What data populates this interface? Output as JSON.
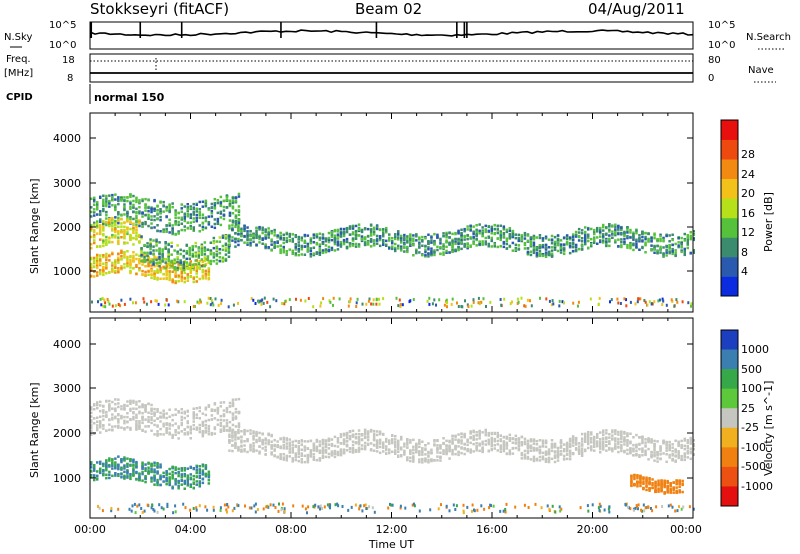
{
  "header": {
    "title": "Stokkseyri (fitACF)",
    "beam": "Beam 02",
    "date": "04/Aug/2011"
  },
  "top_panels": {
    "nsky_label": "N.Sky",
    "nsky_ticks": [
      "10^5",
      "10^0"
    ],
    "nsearch_label": "N.Search",
    "nsearch_ticks": [
      "10^5",
      "10^0"
    ],
    "freq_label_1": "Freq.",
    "freq_label_2": "[MHz]",
    "freq_ticks": [
      "18",
      "8"
    ],
    "nave_label": "Nave",
    "nave_ticks": [
      "80",
      "0"
    ],
    "cpid_label": "CPID",
    "cpid_text": "normal 150"
  },
  "chart_data": [
    {
      "type": "heatmap",
      "name": "power",
      "ylabel": "Slant Range [km]",
      "yticks": [
        "1000",
        "2000",
        "3000",
        "4000"
      ],
      "ylim": [
        0,
        4500
      ],
      "xlim_hours": [
        0,
        24
      ],
      "colorbar_label": "Power [dB]",
      "colorbar_ticks": [
        "4",
        "8",
        "12",
        "16",
        "20",
        "24",
        "28"
      ],
      "colorbar_colors": [
        "#0a2be0",
        "#2a5ab0",
        "#3b8c6e",
        "#56c23c",
        "#b5e01a",
        "#f2c21a",
        "#f28a12",
        "#ee4a10",
        "#e8100e"
      ],
      "bands": [
        {
          "t0": 0.0,
          "t1": 5.9,
          "r_center": 2200,
          "r_width": 350,
          "power": 9
        },
        {
          "t0": 0.0,
          "t1": 4.8,
          "r_center": 1000,
          "r_width": 250,
          "power": 20
        },
        {
          "t0": 0.0,
          "t1": 2.0,
          "r_center": 1700,
          "r_width": 300,
          "power": 18
        },
        {
          "t0": 2.0,
          "t1": 5.5,
          "r_center": 1350,
          "r_width": 300,
          "power": 10
        },
        {
          "t0": 5.5,
          "t1": 24.0,
          "r_center": 1600,
          "r_width": 250,
          "power": 9
        }
      ]
    },
    {
      "type": "heatmap",
      "name": "velocity",
      "ylabel": "Slant Range [km]",
      "yticks": [
        "1000",
        "2000",
        "3000",
        "4000"
      ],
      "ylim": [
        0,
        4500
      ],
      "xlim_hours": [
        0,
        24
      ],
      "xticks": [
        "00:00",
        "04:00",
        "08:00",
        "12:00",
        "16:00",
        "20:00",
        "00:00"
      ],
      "xlabel": "Time UT",
      "colorbar_label": "Velocity [m s^-1]",
      "colorbar_ticks": [
        "1000",
        "500",
        "100",
        "25",
        "-25",
        "-100",
        "-500",
        "-1000"
      ],
      "colorbar_colors": [
        "#1b3fbf",
        "#3a7fb0",
        "#36a84a",
        "#5cc83a",
        "#c6c6c0",
        "#f0b020",
        "#f08010",
        "#ec5012",
        "#e41010"
      ],
      "bands": [
        {
          "t0": 0.0,
          "t1": 5.9,
          "r_center": 2200,
          "r_width": 350,
          "velocity": 0
        },
        {
          "t0": 0.0,
          "t1": 4.8,
          "r_center": 1000,
          "r_width": 250,
          "velocity": 100
        },
        {
          "t0": 5.5,
          "t1": 24.0,
          "r_center": 1600,
          "r_width": 250,
          "velocity": 0
        },
        {
          "t0": 21.5,
          "t1": 23.6,
          "r_center": 800,
          "r_width": 150,
          "velocity": -200
        }
      ]
    }
  ]
}
